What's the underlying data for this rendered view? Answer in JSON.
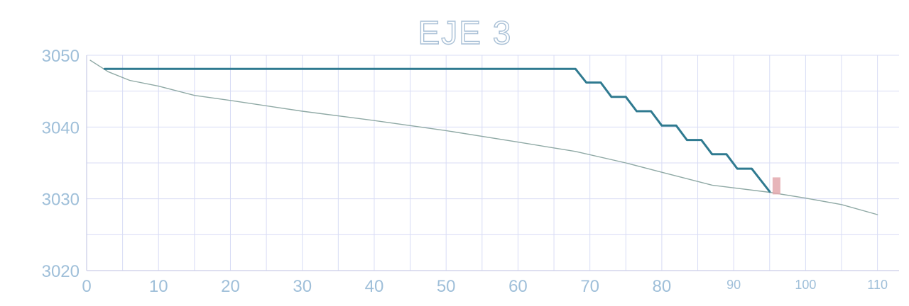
{
  "chart_data": {
    "type": "line",
    "title": "EJE 3",
    "xlabel": "",
    "ylabel": "",
    "xlim": [
      0,
      113
    ],
    "ylim": [
      3020,
      3050
    ],
    "x_ticks": [
      0,
      10,
      20,
      30,
      40,
      50,
      60,
      70,
      80,
      90,
      100,
      110
    ],
    "x_tick_labels": [
      "0",
      "10",
      "20",
      "30",
      "40",
      "50",
      "60",
      "70",
      "80",
      "90",
      "100",
      "110"
    ],
    "y_ticks": [
      3020,
      3030,
      3040,
      3050
    ],
    "y_tick_labels": [
      "3020",
      "3030",
      "3040",
      "3050"
    ],
    "grid": true,
    "series": [
      {
        "color": "#8fa9a5",
        "x": [
          0.5,
          3,
          6,
          10,
          15,
          20,
          30,
          40,
          50,
          60,
          68,
          75,
          80,
          87,
          95,
          100,
          105,
          110
        ],
        "y": [
          3049.3,
          3047.7,
          3046.5,
          3045.7,
          3044.4,
          3043.7,
          3042.2,
          3040.9,
          3039.5,
          3037.9,
          3036.6,
          3035,
          3033.7,
          3031.9,
          3030.9,
          3030.1,
          3029.2,
          3027.8
        ]
      },
      {
        "color": "#2f7a90",
        "x": [
          2.5,
          68,
          69.5,
          71.5,
          73,
          75,
          76.5,
          78.5,
          80,
          82,
          83.5,
          85.5,
          87,
          89,
          90.5,
          92.5,
          95
        ],
        "y": [
          3048.1,
          3048.1,
          3046.2,
          3046.2,
          3044.2,
          3044.2,
          3042.2,
          3042.2,
          3040.2,
          3040.2,
          3038.2,
          3038.2,
          3036.2,
          3036.2,
          3034.2,
          3034.2,
          3031
        ]
      }
    ],
    "annotations": [
      {
        "type": "marker",
        "x": 96,
        "y": 3031.8,
        "color": "#e3a8ad"
      }
    ]
  }
}
